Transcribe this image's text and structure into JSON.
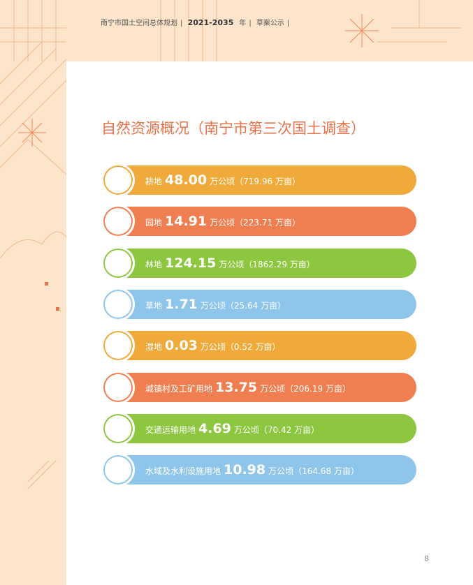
{
  "header": {
    "plan": "南宁市国土空间总体规划",
    "years": "2021-2035",
    "year_unit": "年",
    "stage": "草案公示"
  },
  "title": "自然资源概况（南宁市第三次国土调查）",
  "items": [
    {
      "label": "耕地",
      "value": "48.00",
      "unit": "万公顷",
      "note": "（719.96 万亩）",
      "color": "#f0aa3a"
    },
    {
      "label": "园地",
      "value": "14.91",
      "unit": "万公顷",
      "note": "（223.71 万亩）",
      "color": "#ef7e50"
    },
    {
      "label": "林地",
      "value": "124.15",
      "unit": "万公顷",
      "note": "（1862.29 万亩）",
      "color": "#8dc63f"
    },
    {
      "label": "草地",
      "value": "1.71",
      "unit": "万公顷",
      "note": "（25.64 万亩）",
      "color": "#8ec5ea"
    },
    {
      "label": "湿地",
      "value": "0.03",
      "unit": "万公顷",
      "note": "（0.52 万亩）",
      "color": "#f0aa3a"
    },
    {
      "label": "城镇村及工矿用地",
      "value": "13.75",
      "unit": "万公顷",
      "note": "（206.19 万亩）",
      "color": "#ef7e50"
    },
    {
      "label": "交通运输用地",
      "value": "4.69",
      "unit": "万公顷",
      "note": "（70.42 万亩）",
      "color": "#8dc63f"
    },
    {
      "label": "水域及水利设施用地",
      "value": "10.98",
      "unit": "万公顷",
      "note": "（164.68 万亩）",
      "color": "#8ec5ea"
    }
  ],
  "page_number": "8"
}
